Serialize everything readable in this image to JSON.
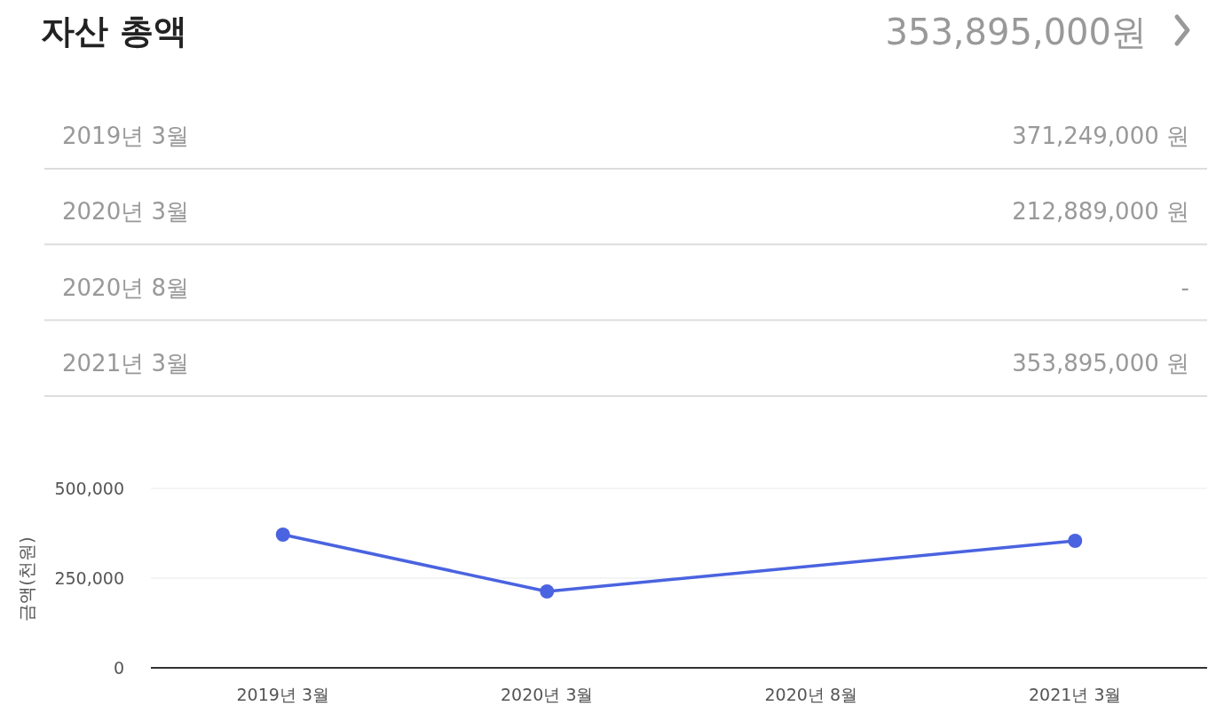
{
  "chart_data": {
    "type": "line",
    "title": "자산 총액",
    "annotations": [
      "353,895,000원",
      "371,249,000 원",
      "212,889,000 원",
      "-",
      "353,895,000 원"
    ],
    "ylabel": "금액(천원)",
    "categories": [
      "2019년 3월",
      "2020년 3월",
      "2020년 8월",
      "2021년 3월"
    ],
    "values": [
      371249,
      212889,
      null,
      353895
    ],
    "color": "#4a63e0",
    "marker": "circle",
    "grid": "y",
    "legend": false,
    "ylim": [
      0,
      500000
    ],
    "yticks": [
      {
        "value": 0,
        "label": "0"
      },
      {
        "value": 250000,
        "label": "250,000"
      },
      {
        "value": 500000,
        "label": "500,000"
      }
    ]
  }
}
